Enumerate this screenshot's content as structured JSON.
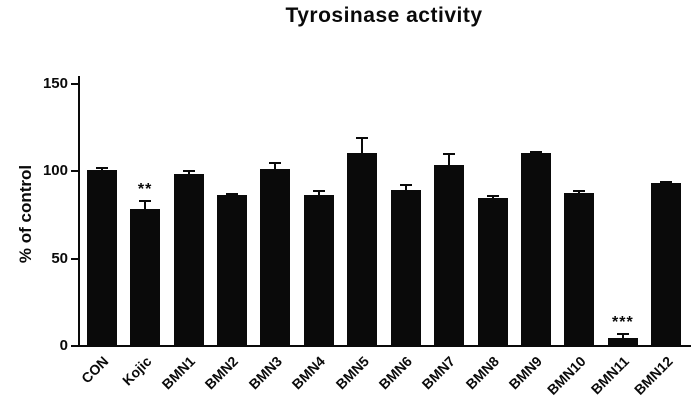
{
  "chart_data": {
    "type": "bar",
    "title": "Tyrosinase activity",
    "xlabel": "",
    "ylabel": "% of control",
    "categories": [
      "CON",
      "Kojic",
      "BMN1",
      "BMN2",
      "BMN3",
      "BMN4",
      "BMN5",
      "BMN6",
      "BMN7",
      "BMN8",
      "BMN9",
      "BMN10",
      "BMN11",
      "BMN12"
    ],
    "values": [
      100,
      78,
      98,
      86,
      101,
      86,
      110,
      89,
      103,
      84,
      110,
      87,
      4,
      93
    ],
    "errors": [
      2,
      5,
      2,
      1,
      4,
      3,
      9,
      3,
      7,
      2,
      1,
      2,
      3,
      1
    ],
    "annotations": [
      "",
      "**",
      "",
      "",
      "",
      "",
      "",
      "",
      "",
      "",
      "",
      "",
      "***",
      ""
    ],
    "ylim": [
      0,
      150
    ],
    "yticks": [
      0,
      50,
      100,
      150
    ],
    "bar_color": "#0a0a0a",
    "grid": false,
    "legend": null
  }
}
